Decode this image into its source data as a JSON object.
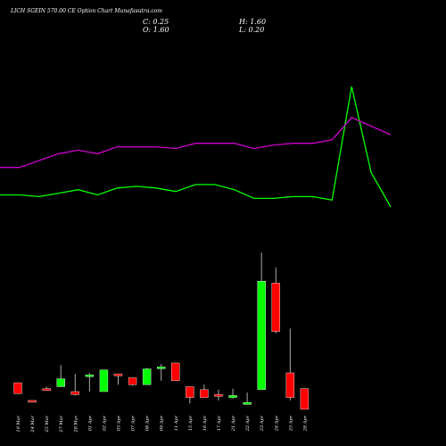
{
  "header": {
    "title": "LICH          SGEIN 570.00 CE Option Chart Munafasutra.com",
    "close_label": "C: 0.25",
    "high_label": "H: 1.60",
    "open_label": "O: 1.60",
    "low_label": "L: 0.20"
  },
  "colors": {
    "background": "#000000",
    "up": "#00ff00",
    "down": "#ff0000",
    "wick": "#aaaaaa",
    "green_line": "#00ff00",
    "magenta_line": "#cc00cc",
    "axis_text": "#ffffff"
  },
  "chart_data": {
    "type": "candlestick",
    "ylim": [
      0,
      1.9
    ],
    "x": [
      "19 Mar",
      "24 Mar",
      "25 Mar",
      "27 Mar",
      "28 Mar",
      "01 Apr",
      "02 Apr",
      "03 Apr",
      "07 Apr",
      "08 Apr",
      "09 Apr",
      "11 Apr",
      "15 Apr",
      "16 Apr",
      "17 Apr",
      "21 Apr",
      "22 Apr",
      "23 Apr",
      "24 Apr",
      "25 Apr",
      "28 Apr"
    ],
    "candles": [
      {
        "open": 0.28,
        "high": 0.28,
        "low": 0.17,
        "close": 0.17,
        "up": false
      },
      {
        "open": 0.1,
        "high": 0.1,
        "low": 0.09,
        "close": 0.09,
        "up": false
      },
      {
        "open": 0.22,
        "high": 0.24,
        "low": 0.2,
        "close": 0.21,
        "up": false
      },
      {
        "open": 0.24,
        "high": 0.46,
        "low": 0.24,
        "close": 0.32,
        "up": true
      },
      {
        "open": 0.19,
        "high": 0.37,
        "low": 0.15,
        "close": 0.16,
        "up": false
      },
      {
        "open": 0.36,
        "high": 0.38,
        "low": 0.19,
        "close": 0.36,
        "up": true
      },
      {
        "open": 0.19,
        "high": 0.41,
        "low": 0.19,
        "close": 0.41,
        "up": true
      },
      {
        "open": 0.37,
        "high": 0.37,
        "low": 0.26,
        "close": 0.35,
        "up": false
      },
      {
        "open": 0.33,
        "high": 0.33,
        "low": 0.25,
        "close": 0.26,
        "up": false
      },
      {
        "open": 0.26,
        "high": 0.43,
        "low": 0.26,
        "close": 0.42,
        "up": true
      },
      {
        "open": 0.43,
        "high": 0.47,
        "low": 0.3,
        "close": 0.44,
        "up": true
      },
      {
        "open": 0.48,
        "high": 0.48,
        "low": 0.3,
        "close": 0.3,
        "up": false
      },
      {
        "open": 0.24,
        "high": 0.24,
        "low": 0.07,
        "close": 0.13,
        "up": false
      },
      {
        "open": 0.21,
        "high": 0.26,
        "low": 0.13,
        "close": 0.13,
        "up": false
      },
      {
        "open": 0.16,
        "high": 0.21,
        "low": 0.1,
        "close": 0.15,
        "up": false
      },
      {
        "open": 0.13,
        "high": 0.22,
        "low": 0.12,
        "close": 0.15,
        "up": true
      },
      {
        "open": 0.06,
        "high": 0.18,
        "low": 0.06,
        "close": 0.08,
        "up": true
      },
      {
        "open": 0.21,
        "high": 1.6,
        "low": 0.21,
        "close": 1.31,
        "up": true
      },
      {
        "open": 1.29,
        "high": 1.45,
        "low": 0.78,
        "close": 0.8,
        "up": false
      },
      {
        "open": 0.38,
        "high": 0.83,
        "low": 0.1,
        "close": 0.13,
        "up": false
      },
      {
        "open": 0.22,
        "high": 0.22,
        "low": 0.01,
        "close": 0.01,
        "up": false
      }
    ],
    "series": [
      {
        "values": [
          0.42,
          0.42,
          0.41,
          0.43,
          0.45,
          0.42,
          0.46,
          0.47,
          0.46,
          0.44,
          0.48,
          0.48,
          0.45,
          0.4,
          0.4,
          0.41,
          0.41,
          0.39,
          1.05,
          0.55,
          0.35
        ]
      },
      {
        "values": [
          0.58,
          0.58,
          0.62,
          0.66,
          0.68,
          0.66,
          0.7,
          0.7,
          0.7,
          0.69,
          0.72,
          0.72,
          0.72,
          0.69,
          0.71,
          0.72,
          0.72,
          0.74,
          0.87,
          0.82,
          0.77
        ]
      }
    ]
  }
}
